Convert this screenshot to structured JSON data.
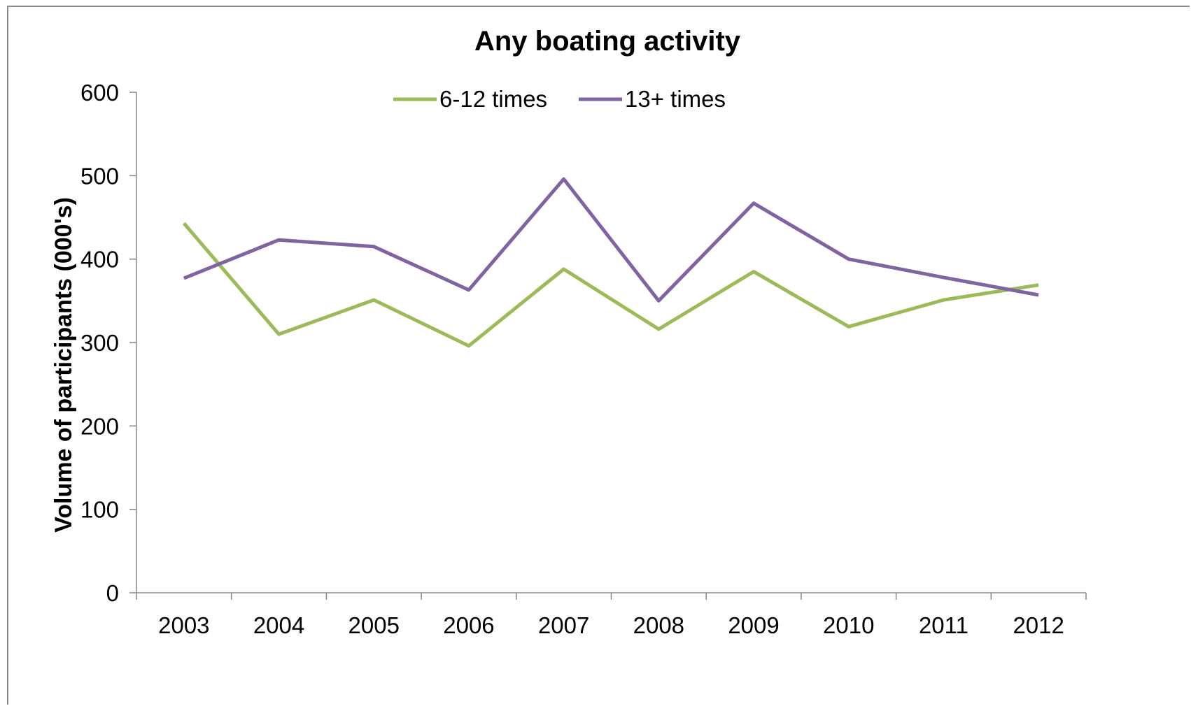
{
  "chart_data": {
    "type": "line",
    "title": "Any boating activity",
    "xlabel": "",
    "ylabel": "Volume of participants (000's)",
    "categories": [
      "2003",
      "2004",
      "2005",
      "2006",
      "2007",
      "2008",
      "2009",
      "2010",
      "2011",
      "2012"
    ],
    "yticks": [
      "0",
      "100",
      "200",
      "300",
      "400",
      "500",
      "600"
    ],
    "ylim": [
      0,
      600
    ],
    "grid": false,
    "legend_position": "top",
    "series": [
      {
        "name": "6-12 times",
        "color": "#9bbb59",
        "values": [
          443,
          310,
          351,
          296,
          388,
          316,
          385,
          319,
          351,
          369
        ]
      },
      {
        "name": "13+ times",
        "color": "#8064a2",
        "values": [
          377,
          423,
          415,
          363,
          496,
          350,
          467,
          400,
          378,
          357
        ]
      }
    ]
  }
}
